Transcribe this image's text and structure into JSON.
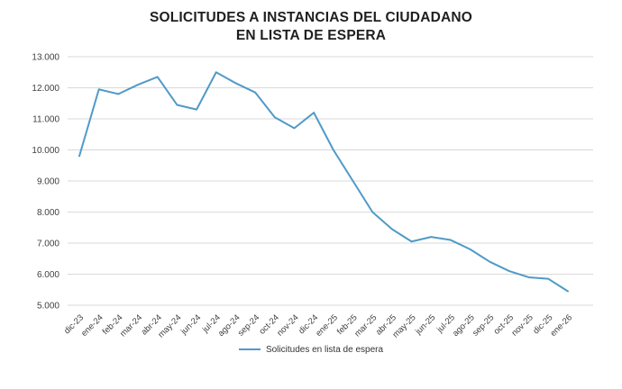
{
  "chart_data": {
    "type": "line",
    "title": "SOLICITUDES A INSTANCIAS DEL CIUDADANO EN LISTA DE ESPERA",
    "title_lines": [
      "SOLICITUDES A INSTANCIAS DEL CIUDADANO",
      "EN LISTA DE ESPERA"
    ],
    "categories": [
      "dic-23",
      "ene-24",
      "feb-24",
      "mar-24",
      "abr-24",
      "may-24",
      "jun-24",
      "jul-24",
      "ago-24",
      "sep-24",
      "oct-24",
      "nov-24",
      "dic-24",
      "ene-25",
      "feb-25",
      "mar-25",
      "abr-25",
      "may-25",
      "jun-25",
      "jul-25",
      "ago-25",
      "sep-25",
      "oct-25",
      "nov-25",
      "dic-25",
      "ene-26"
    ],
    "series": [
      {
        "name": "Solicitudes en lista de espera",
        "values": [
          9800,
          11950,
          11800,
          12100,
          12350,
          11450,
          11300,
          12500,
          12150,
          11850,
          11050,
          10700,
          11200,
          10000,
          9000,
          8000,
          7450,
          7050,
          7200,
          7100,
          6800,
          6400,
          6100,
          5900,
          5850,
          5450
        ]
      }
    ],
    "xlabel": "",
    "ylabel": "",
    "ylim": [
      5000,
      13000
    ],
    "ytick_interval": 1000,
    "ytick_labels": [
      "5.000",
      "6.000",
      "7.000",
      "8.000",
      "9.000",
      "10.000",
      "11.000",
      "12.000",
      "13.000"
    ],
    "grid": true,
    "legend_position": "bottom",
    "colors": {
      "line": "#4f9ac8",
      "grid": "#d9d9d9",
      "axis_text": "#3f3f3f",
      "title_text": "#1f1f1f"
    }
  }
}
